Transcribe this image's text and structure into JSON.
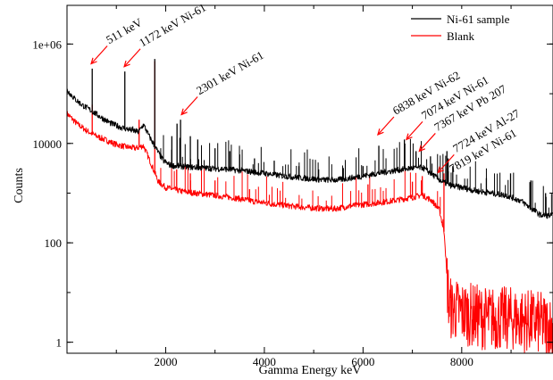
{
  "chart_data": {
    "type": "line",
    "title": "",
    "xlabel": "Gamma Energy keV",
    "ylabel": "Counts",
    "xlim": [
      0,
      9850
    ],
    "ylim": [
      0.6,
      6000000
    ],
    "yscale": "log",
    "x_ticks": [
      2000,
      4000,
      6000,
      8000
    ],
    "x_tick_labels": [
      "2000",
      "4000",
      "6000",
      "8000"
    ],
    "y_ticks": [
      1,
      100,
      10000,
      1000000
    ],
    "y_tick_labels": [
      "1",
      "100",
      "10000",
      "1e+06"
    ],
    "grid": false,
    "legend": {
      "position": "top-right",
      "entries": [
        {
          "label": "Ni-61 sample",
          "color": "#000000"
        },
        {
          "label": "Blank",
          "color": "#ff0000"
        }
      ]
    },
    "series": [
      {
        "name": "Ni-61 sample",
        "color": "#000000",
        "baseline": [
          [
            0,
            120000
          ],
          [
            150,
            80000
          ],
          [
            300,
            60000
          ],
          [
            500,
            45000
          ],
          [
            700,
            33000
          ],
          [
            900,
            25000
          ],
          [
            1100,
            21000
          ],
          [
            1300,
            18500
          ],
          [
            1450,
            17000
          ],
          [
            1550,
            24000
          ],
          [
            1650,
            15000
          ],
          [
            1800,
            8000
          ],
          [
            1950,
            4500
          ],
          [
            2100,
            3600
          ],
          [
            2400,
            3400
          ],
          [
            2800,
            3200
          ],
          [
            3200,
            3050
          ],
          [
            3600,
            2800
          ],
          [
            4000,
            2500
          ],
          [
            4400,
            2200
          ],
          [
            4800,
            2000
          ],
          [
            5200,
            1850
          ],
          [
            5500,
            1850
          ],
          [
            5800,
            2050
          ],
          [
            6100,
            2300
          ],
          [
            6400,
            2600
          ],
          [
            6700,
            2900
          ],
          [
            7000,
            3200
          ],
          [
            7200,
            3300
          ],
          [
            7400,
            2400
          ],
          [
            7600,
            1700
          ],
          [
            7800,
            1400
          ],
          [
            8000,
            1300
          ],
          [
            8300,
            1100
          ],
          [
            8600,
            1000
          ],
          [
            8900,
            900
          ],
          [
            9200,
            700
          ],
          [
            9400,
            500
          ],
          [
            9600,
            360
          ],
          [
            9850,
            350
          ]
        ],
        "peaks": [
          [
            511,
            320000
          ],
          [
            1172,
            280000
          ],
          [
            1332,
            22000
          ],
          [
            1779,
            500000
          ],
          [
            2125,
            14000
          ],
          [
            2230,
            25000
          ],
          [
            2301,
            30000
          ],
          [
            2500,
            14000
          ],
          [
            2650,
            12000
          ],
          [
            3000,
            8000
          ],
          [
            3300,
            7000
          ],
          [
            3500,
            6000
          ],
          [
            3800,
            5000
          ],
          [
            4200,
            4500
          ],
          [
            4700,
            3500
          ],
          [
            5100,
            3000
          ],
          [
            5600,
            3200
          ],
          [
            6000,
            3500
          ],
          [
            6320,
            9000
          ],
          [
            6838,
            12000
          ],
          [
            7074,
            7000
          ],
          [
            7367,
            5500
          ],
          [
            7700,
            7000
          ],
          [
            7724,
            5000
          ],
          [
            7819,
            3500
          ],
          [
            8500,
            2000
          ],
          [
            8990,
            2500
          ],
          [
            9400,
            1800
          ],
          [
            9700,
            1000
          ]
        ]
      },
      {
        "name": "Blank",
        "color": "#ff0000",
        "baseline": [
          [
            0,
            40000
          ],
          [
            200,
            25000
          ],
          [
            400,
            18000
          ],
          [
            600,
            14000
          ],
          [
            800,
            11500
          ],
          [
            1000,
            9500
          ],
          [
            1200,
            8500
          ],
          [
            1400,
            8000
          ],
          [
            1550,
            9000
          ],
          [
            1700,
            4000
          ],
          [
            1850,
            1700
          ],
          [
            2000,
            1300
          ],
          [
            2300,
            1100
          ],
          [
            2600,
            1000
          ],
          [
            3000,
            900
          ],
          [
            3400,
            800
          ],
          [
            3800,
            680
          ],
          [
            4200,
            600
          ],
          [
            4600,
            540
          ],
          [
            5000,
            500
          ],
          [
            5400,
            480
          ],
          [
            5800,
            560
          ],
          [
            6200,
            620
          ],
          [
            6600,
            700
          ],
          [
            7000,
            820
          ],
          [
            7200,
            920
          ],
          [
            7400,
            700
          ],
          [
            7550,
            450
          ],
          [
            7650,
            150
          ],
          [
            7700,
            20
          ],
          [
            7750,
            5
          ],
          [
            8000,
            4
          ],
          [
            8500,
            3
          ],
          [
            9000,
            3
          ],
          [
            9500,
            2.5
          ],
          [
            9850,
            2
          ]
        ],
        "peaks": [
          [
            511,
            60000
          ],
          [
            1461,
            30000
          ],
          [
            1779,
            450000
          ],
          [
            2223,
            3000
          ],
          [
            2500,
            2500
          ],
          [
            3000,
            1800
          ],
          [
            3700,
            1200
          ],
          [
            6100,
            1500
          ],
          [
            7000,
            1700
          ],
          [
            7200,
            2200
          ],
          [
            7640,
            2500
          ]
        ]
      }
    ],
    "annotations": [
      {
        "text": "511 keV",
        "tip": [
          490,
          400000
        ],
        "arrow": true
      },
      {
        "text": "1172 keV Ni-61",
        "tip": [
          1160,
          350000
        ],
        "arrow": true
      },
      {
        "text": "2301 keV Ni-61",
        "tip": [
          2320,
          38000
        ],
        "arrow": true
      },
      {
        "text": "6838 keV Ni-62",
        "tip": [
          6300,
          15000
        ],
        "arrow": true
      },
      {
        "text": "7074 keV Ni-61",
        "tip": [
          6880,
          12000
        ],
        "arrow": true
      },
      {
        "text": "7367 keV Pb 207",
        "tip": [
          7140,
          7000
        ],
        "arrow": true
      },
      {
        "text": "7724 keV Al-27",
        "tip": [
          7520,
          2600
        ],
        "arrow": true
      },
      {
        "text": "7819 keV Ni-61",
        "tip": [
          7700,
          2000
        ],
        "arrow": false
      }
    ]
  }
}
